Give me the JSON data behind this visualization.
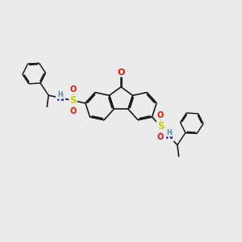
{
  "bg_color": "#ebebeb",
  "bond_color": "#1a1a1a",
  "bond_width": 1.2,
  "atom_colors": {
    "O": "#ee1100",
    "N": "#2222bb",
    "S": "#cccc00",
    "H": "#558899",
    "C": "#1a1a1a"
  },
  "font_size": 7.5,
  "fig_width": 3.0,
  "fig_height": 3.0,
  "dpi": 100
}
